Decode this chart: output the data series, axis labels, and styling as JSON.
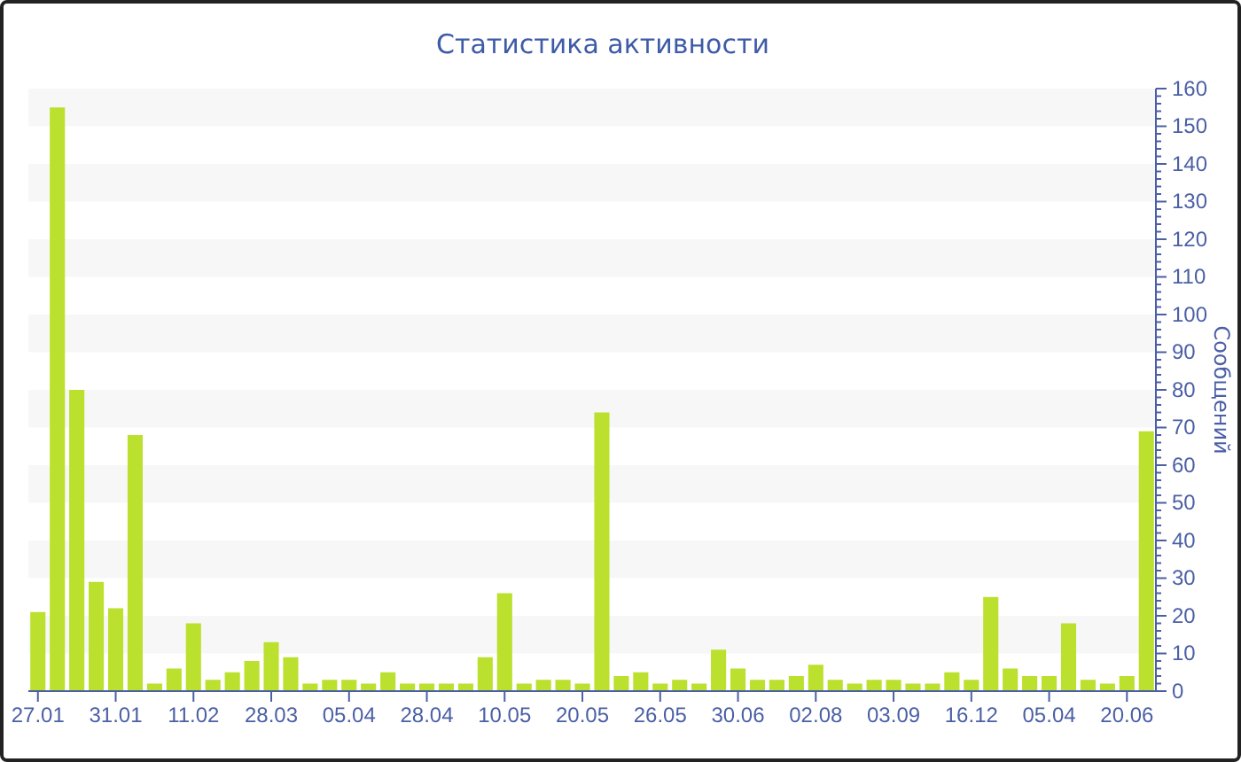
{
  "chart_data": {
    "type": "bar",
    "title": "Статистика активности",
    "ylabel": "Сообщений",
    "categories": [
      "27.01",
      null,
      null,
      null,
      "31.01",
      null,
      null,
      null,
      "11.02",
      null,
      null,
      null,
      "28.03",
      null,
      null,
      null,
      "05.04",
      null,
      null,
      null,
      "28.04",
      null,
      null,
      null,
      "10.05",
      null,
      null,
      null,
      "20.05",
      null,
      null,
      null,
      "26.05",
      null,
      null,
      null,
      "30.06",
      null,
      null,
      null,
      "02.08",
      null,
      null,
      null,
      "03.09",
      null,
      null,
      null,
      "16.12",
      null,
      null,
      null,
      "05.04",
      null,
      null,
      null,
      "20.06",
      null
    ],
    "values": [
      21,
      155,
      80,
      29,
      22,
      68,
      2,
      6,
      18,
      3,
      5,
      8,
      13,
      9,
      2,
      3,
      3,
      2,
      5,
      2,
      2,
      2,
      2,
      9,
      26,
      2,
      3,
      3,
      2,
      74,
      4,
      5,
      2,
      3,
      2,
      11,
      6,
      3,
      3,
      4,
      7,
      3,
      2,
      3,
      3,
      2,
      2,
      5,
      3,
      25,
      6,
      4,
      4,
      18,
      3,
      2,
      4,
      69
    ],
    "color": "#bbe02e",
    "ylim": [
      0,
      160
    ],
    "yticks": [
      0,
      10,
      20,
      30,
      40,
      50,
      60,
      70,
      80,
      90,
      100,
      110,
      120,
      130,
      140,
      150,
      160
    ],
    "bands": [
      {
        "axis": "y",
        "from": 10,
        "to": 20,
        "color": "#f7f7f7"
      },
      {
        "axis": "y",
        "from": 30,
        "to": 40,
        "color": "#f7f7f7"
      },
      {
        "axis": "y",
        "from": 50,
        "to": 60,
        "color": "#f7f7f7"
      },
      {
        "axis": "y",
        "from": 70,
        "to": 80,
        "color": "#f7f7f7"
      },
      {
        "axis": "y",
        "from": 90,
        "to": 100,
        "color": "#f7f7f7"
      },
      {
        "axis": "y",
        "from": 110,
        "to": 120,
        "color": "#f7f7f7"
      },
      {
        "axis": "y",
        "from": 130,
        "to": 140,
        "color": "#f7f7f7"
      },
      {
        "axis": "y",
        "from": 150,
        "to": 160,
        "color": "#f7f7f7"
      }
    ]
  }
}
